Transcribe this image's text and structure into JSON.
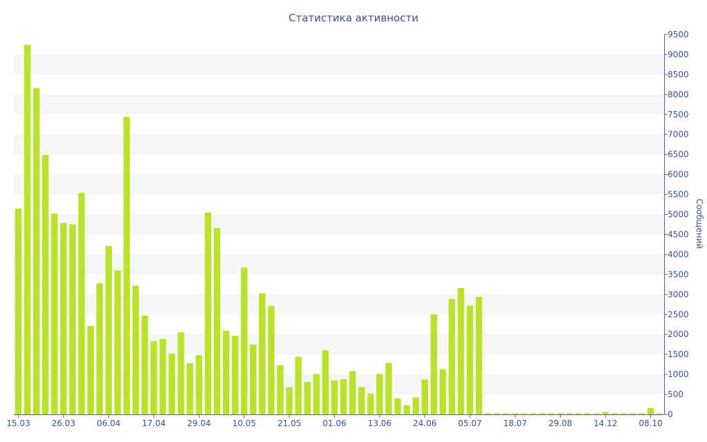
{
  "colors": {
    "bar": "#b9e22b",
    "text": "#3e4f8c",
    "band": "#f6f6f6",
    "axis": "#4a5fa8"
  },
  "chart_data": {
    "type": "bar",
    "title": "Статистика активности",
    "ylabel": "Сообщений",
    "xlabel": "",
    "ylim": [
      0,
      9500
    ],
    "y_ticks": [
      0,
      500,
      1000,
      1500,
      2000,
      2500,
      3000,
      3500,
      4000,
      4500,
      5000,
      5500,
      6000,
      6500,
      7000,
      7500,
      8000,
      8500,
      9000,
      9500
    ],
    "y_axis_side": "right",
    "grid": "alternating horizontal bands",
    "x_tick_labels": [
      {
        "label": "15.03",
        "index": 0
      },
      {
        "label": "26.03",
        "index": 5
      },
      {
        "label": "06.04",
        "index": 10
      },
      {
        "label": "17.04",
        "index": 15
      },
      {
        "label": "29.04",
        "index": 20
      },
      {
        "label": "10.05",
        "index": 25
      },
      {
        "label": "21.05",
        "index": 30
      },
      {
        "label": "01.06",
        "index": 35
      },
      {
        "label": "13.06",
        "index": 40
      },
      {
        "label": "24.06",
        "index": 45
      },
      {
        "label": "05.07",
        "index": 50
      },
      {
        "label": "18.07",
        "index": 55
      },
      {
        "label": "29.08",
        "index": 60
      },
      {
        "label": "14.12",
        "index": 65
      },
      {
        "label": "08.10",
        "index": 70
      }
    ],
    "values": [
      5150,
      9240,
      8160,
      6490,
      5020,
      4790,
      4750,
      5540,
      2210,
      3280,
      4210,
      3600,
      7440,
      3220,
      2470,
      1830,
      1890,
      1520,
      2050,
      1280,
      1480,
      5050,
      4660,
      2090,
      1960,
      3670,
      1750,
      3030,
      2710,
      1230,
      680,
      1440,
      810,
      1010,
      1600,
      850,
      880,
      1080,
      680,
      520,
      1010,
      1290,
      400,
      230,
      420,
      870,
      2500,
      1130,
      2890,
      3160,
      2720,
      2940,
      20,
      20,
      20,
      20,
      20,
      20,
      20,
      20,
      20,
      20,
      20,
      20,
      20,
      60,
      20,
      20,
      20,
      20,
      160,
      20
    ]
  }
}
